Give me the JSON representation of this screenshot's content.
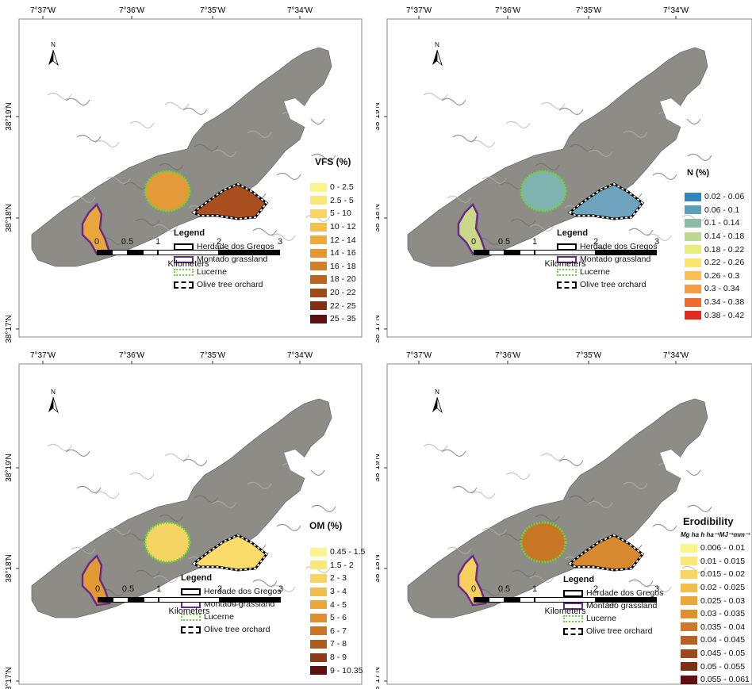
{
  "longitude_labels": [
    "7°37'W",
    "7°36'W",
    "7°35'W",
    "7°34'W"
  ],
  "latitude_labels": [
    "38°19'N",
    "38°18'N",
    "38°17'N"
  ],
  "north_label": "N",
  "scalebar": {
    "ticks": [
      "0",
      "0.5",
      "1",
      "2",
      "3"
    ],
    "unit": "Kilometers"
  },
  "legend": {
    "title": "Legend",
    "items": [
      {
        "label": "Herdade dos Gregos",
        "style": "black-outline"
      },
      {
        "label": "Montado grassland",
        "style": "purple-outline"
      },
      {
        "label": "Lucerne",
        "style": "green-dotted-outline"
      },
      {
        "label": "Olive tree orchard",
        "style": "black-white-dashed-outline"
      }
    ]
  },
  "panels": [
    {
      "id": "vfs",
      "title": "VFS (%)",
      "unit": "",
      "classes": [
        {
          "label": "0 - 2.5",
          "color": "#fdf58c"
        },
        {
          "label": "2.5 - 5",
          "color": "#fbe678"
        },
        {
          "label": "5 - 10",
          "color": "#f8d462"
        },
        {
          "label": "10 - 12",
          "color": "#f3c04e"
        },
        {
          "label": "12 - 14",
          "color": "#edab3e"
        },
        {
          "label": "14 - 16",
          "color": "#e49832"
        },
        {
          "label": "16 - 18",
          "color": "#d27f2a"
        },
        {
          "label": "18 - 20",
          "color": "#bb6523"
        },
        {
          "label": "20 - 22",
          "color": "#a04a1c"
        },
        {
          "label": "22 - 25",
          "color": "#813016"
        },
        {
          "label": "25 - 35",
          "color": "#5f1010"
        }
      ],
      "fill": {
        "lucerne": "#e49a38",
        "montado": "#e8a63c",
        "olive": "#a94e1e"
      }
    },
    {
      "id": "n",
      "title": "N (%)",
      "unit": "",
      "classes": [
        {
          "label": "0.02 - 0.06",
          "color": "#2f86c1"
        },
        {
          "label": "0.06 - 0.1",
          "color": "#5c9fbd"
        },
        {
          "label": "0.1 - 0.14",
          "color": "#8cbba8"
        },
        {
          "label": "0.14 - 0.18",
          "color": "#bdd98e"
        },
        {
          "label": "0.18 - 0.22",
          "color": "#e7ee7a"
        },
        {
          "label": "0.22 - 0.26",
          "color": "#fbe56a"
        },
        {
          "label": "0.26 - 0.3",
          "color": "#fbbf52"
        },
        {
          "label": "0.3 - 0.34",
          "color": "#f79c3f"
        },
        {
          "label": "0.34 - 0.38",
          "color": "#f06a2f"
        },
        {
          "label": "0.38 - 0.42",
          "color": "#e52a20"
        }
      ],
      "fill": {
        "lucerne": "#7fb3b0",
        "montado": "#c9d98a",
        "olive": "#6ea3bd"
      }
    },
    {
      "id": "om",
      "title": "OM (%)",
      "unit": "",
      "classes": [
        {
          "label": "0.45 - 1.5",
          "color": "#fdf58c"
        },
        {
          "label": "1.5 - 2",
          "color": "#fbe678"
        },
        {
          "label": "2 - 3",
          "color": "#f8d462"
        },
        {
          "label": "3 - 4",
          "color": "#f1bd4c"
        },
        {
          "label": "4 - 5",
          "color": "#eaa73c"
        },
        {
          "label": "5 - 6",
          "color": "#de9030"
        },
        {
          "label": "6 - 7",
          "color": "#c97628"
        },
        {
          "label": "7 - 8",
          "color": "#b05c21"
        },
        {
          "label": "8 - 9",
          "color": "#8d3c19"
        },
        {
          "label": "9 - 10.35",
          "color": "#5f1010"
        }
      ],
      "fill": {
        "lucerne": "#f6d464",
        "montado": "#e19a34",
        "olive": "#fbdc6a"
      }
    },
    {
      "id": "erod",
      "title": "Erodibility",
      "unit": "Mg ha h ha⁻¹MJ⁻¹mm⁻¹",
      "classes": [
        {
          "label": "0.006 - 0.01",
          "color": "#fdf58c"
        },
        {
          "label": "0.01 - 0.015",
          "color": "#fbe678"
        },
        {
          "label": "0.015 - 0.02",
          "color": "#f8d462"
        },
        {
          "label": "0.02 - 0.025",
          "color": "#f1bd4c"
        },
        {
          "label": "0.025 - 0.03",
          "color": "#eaa73c"
        },
        {
          "label": "0.03 - 0.035",
          "color": "#de9030"
        },
        {
          "label": "0.035 - 0.04",
          "color": "#cc7a2a"
        },
        {
          "label": "0.04 - 0.045",
          "color": "#b66224"
        },
        {
          "label": "0.045 - 0.05",
          "color": "#9a4a1e"
        },
        {
          "label": "0.05 - 0.055",
          "color": "#7c3016"
        },
        {
          "label": "0.055 - 0.061",
          "color": "#5f1010"
        }
      ],
      "fill": {
        "lucerne": "#c87626",
        "montado": "#f6cf5c",
        "olive": "#d8892d"
      }
    }
  ]
}
